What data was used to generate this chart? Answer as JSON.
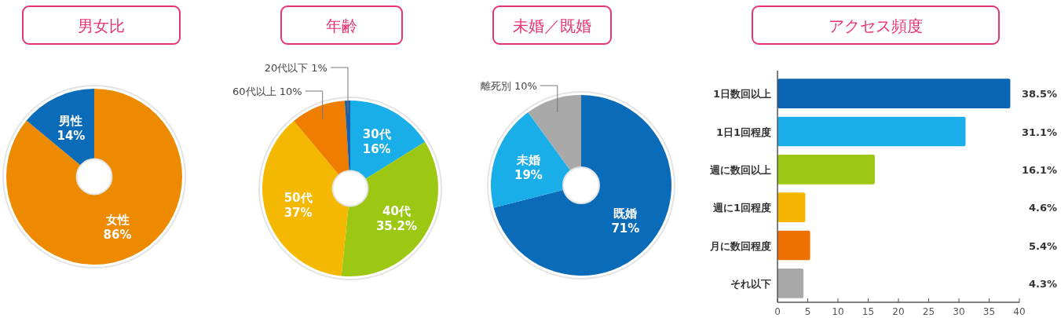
{
  "chart_data": [
    {
      "type": "pie",
      "title": "男女比",
      "categories": [
        "女性",
        "男性"
      ],
      "values": [
        86,
        14
      ],
      "value_labels": [
        "86%",
        "14%"
      ],
      "colors": [
        "#ee8a00",
        "#0a6bb8"
      ]
    },
    {
      "type": "pie",
      "title": "年齢",
      "categories": [
        "30代",
        "40代",
        "50代",
        "60代以上",
        "20代以下"
      ],
      "values": [
        16,
        35.2,
        37,
        10,
        1
      ],
      "value_labels": [
        "16%",
        "35.2%",
        "37%",
        "10%",
        "1%"
      ],
      "colors": [
        "#19aee8",
        "#9cc814",
        "#f5b800",
        "#ee7d00",
        "#1a5fa8"
      ]
    },
    {
      "type": "pie",
      "title": "未婚／既婚",
      "categories": [
        "既婚",
        "未婚",
        "離死別"
      ],
      "values": [
        71,
        19,
        10
      ],
      "value_labels": [
        "71%",
        "19%",
        "10%"
      ],
      "colors": [
        "#0a6bb8",
        "#19aee8",
        "#a9a9a9"
      ]
    },
    {
      "type": "bar",
      "orientation": "horizontal",
      "title": "アクセス頻度",
      "categories": [
        "1日数回以上",
        "1日1回程度",
        "週に数回以上",
        "週に1回程度",
        "月に数回程度",
        "それ以下"
      ],
      "values": [
        38.5,
        31.1,
        16.1,
        4.6,
        5.4,
        4.3
      ],
      "value_labels": [
        "38.5%",
        "31.1%",
        "16.1%",
        "4.6%",
        "5.4%",
        "4.3%"
      ],
      "colors": [
        "#0a64b4",
        "#1aaeea",
        "#9cc814",
        "#f5b400",
        "#ee7000",
        "#a8a8a8"
      ],
      "xlim": [
        0,
        40
      ],
      "xticks": [
        0,
        5,
        10,
        15,
        20,
        25,
        30,
        35,
        40
      ],
      "grid": false
    }
  ]
}
